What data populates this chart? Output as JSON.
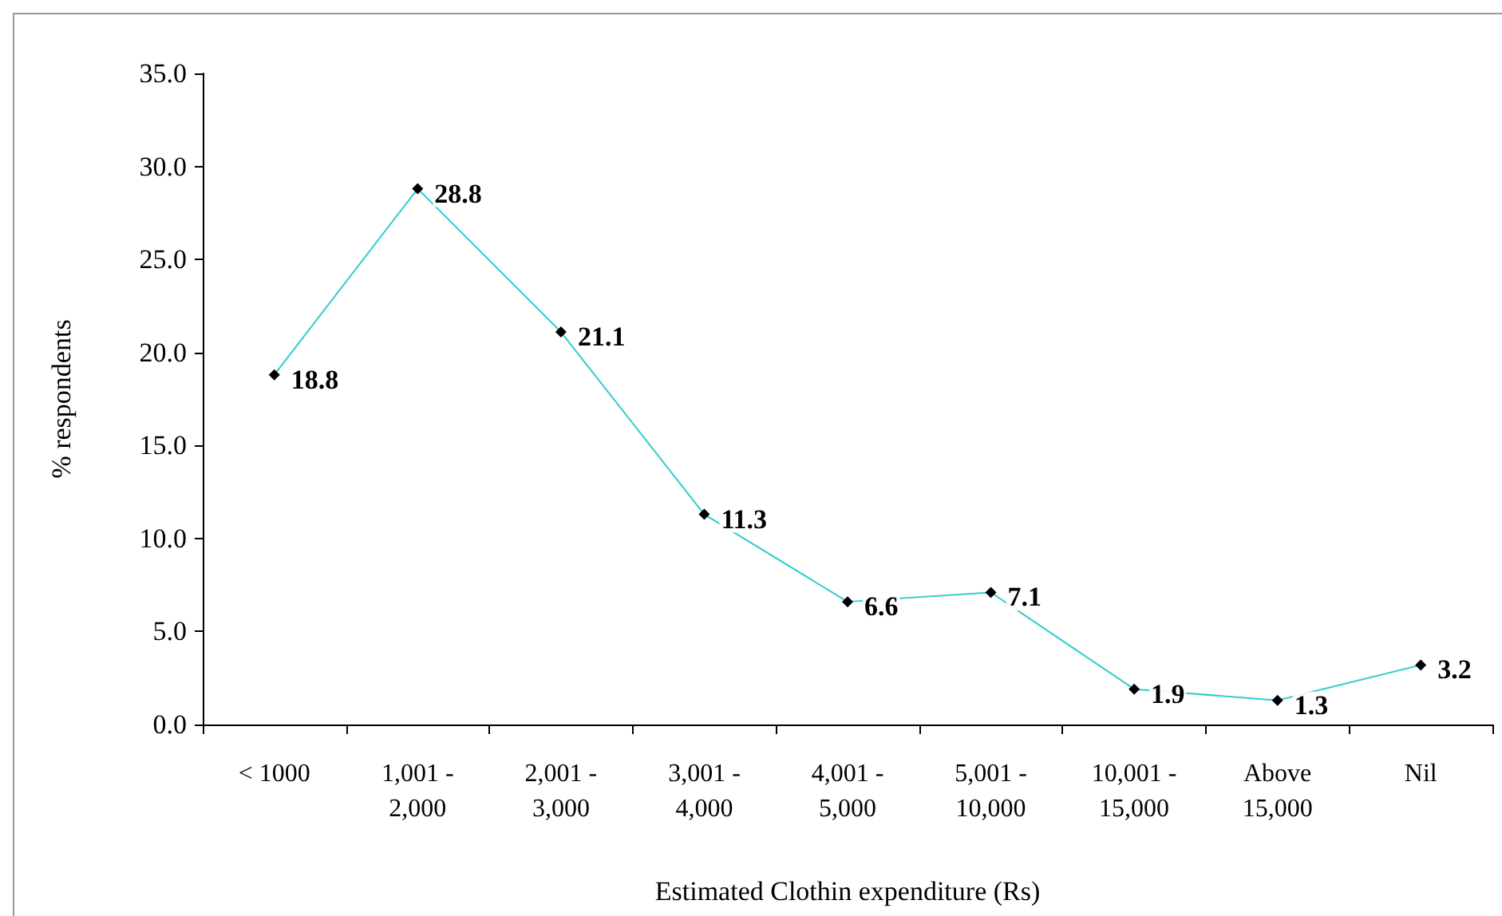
{
  "chart_data": {
    "type": "line",
    "xlabel": "Estimated Clothin expenditure (Rs)",
    "ylabel": "% respondents",
    "categories": [
      "< 1000",
      "1,001 - 2,000",
      "2,001 - 3,000",
      "3,001 - 4,000",
      "4,001 - 5,000",
      "5,001 - 10,000",
      "10,001 - 15,000",
      "Above 15,000",
      "Nil"
    ],
    "series": [
      {
        "color": "#33cccc",
        "values": [
          18.8,
          28.8,
          21.1,
          11.3,
          6.6,
          7.1,
          1.9,
          1.3,
          3.2
        ]
      }
    ],
    "ylim": [
      0,
      35
    ],
    "yticks": [
      {
        "value": 0,
        "label": "0.0"
      },
      {
        "value": 5,
        "label": "5.0"
      },
      {
        "value": 10,
        "label": "10.0"
      },
      {
        "value": 15,
        "label": "15.0"
      },
      {
        "value": 20,
        "label": "20.0"
      },
      {
        "value": 25,
        "label": "25.0"
      },
      {
        "value": 30,
        "label": "30.0"
      },
      {
        "value": 35,
        "label": "35.0"
      }
    ],
    "marker": "diamond",
    "data_labels": true
  }
}
